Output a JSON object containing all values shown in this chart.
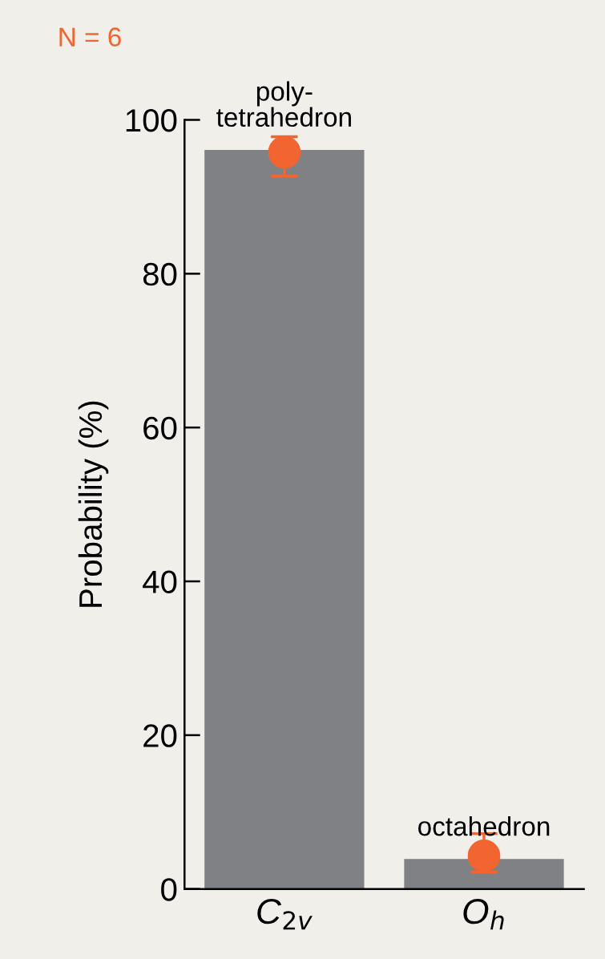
{
  "chart_data": {
    "type": "bar",
    "ylabel": "Probability (%)",
    "categories": [
      "C$_{2v}$",
      "O$_{h}$"
    ],
    "series": [
      {
        "color": "#808185",
        "values": [
          96.1,
          3.9
        ]
      },
      {
        "type": "scatter",
        "color": "#f26430",
        "x": [
          "C$_{2v}$",
          "O$_{h}$"
        ],
        "values": [
          95.8,
          4.3
        ],
        "errors": [
          [
            92.7,
            97.8
          ],
          [
            2.2,
            7.2
          ]
        ]
      }
    ],
    "ylim": [
      0,
      100
    ],
    "yticks": [
      0,
      20,
      40,
      60,
      80,
      100
    ],
    "grid": false,
    "legend": false,
    "marker": "circle",
    "annotations": [
      "N = 6",
      {
        "text": "poly-\ntetrahedron",
        "x": "C$_{2v}$",
        "y": 96.1
      },
      {
        "text": "octahedron",
        "x": "O$_{h}$",
        "y": 3.9
      }
    ]
  }
}
